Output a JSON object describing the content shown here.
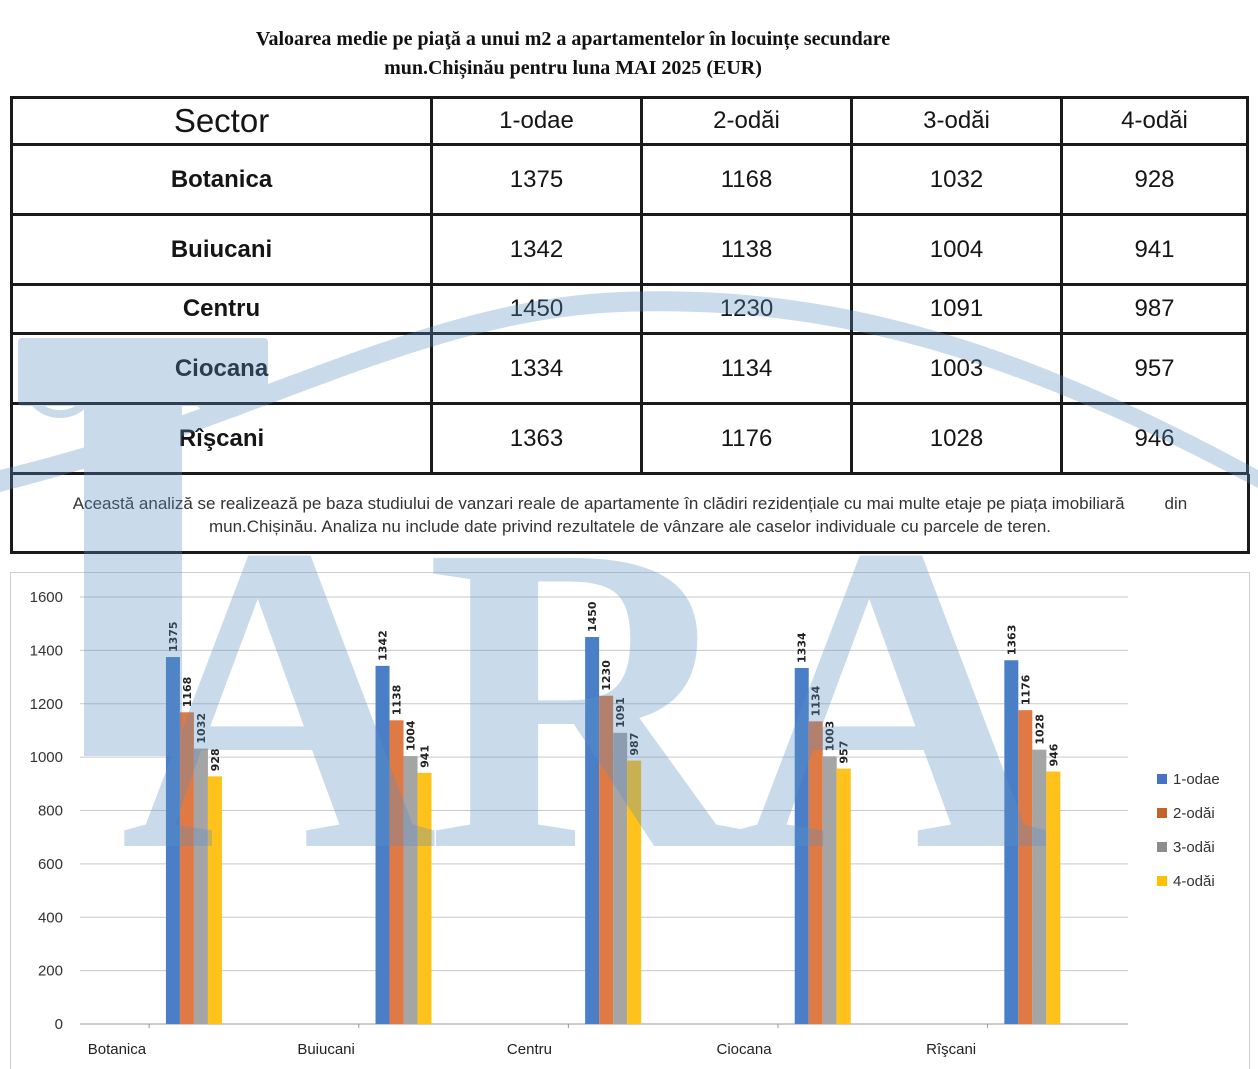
{
  "title_line1": "Valoarea medie pe piaţă a unui m2 a apartamentelor în locuințe secundare",
  "title_line2": "mun.Chișinău pentru luna  MAI 2025 (EUR)",
  "watermark_text": "ARA",
  "table": {
    "headers": [
      "Sector",
      "1-odae",
      "2-odăi",
      "3-odăi",
      "4-odăi"
    ],
    "rows": [
      {
        "sector": "Botanica",
        "values": [
          "1375",
          "1168",
          "1032",
          "928"
        ]
      },
      {
        "sector": "Buiucani",
        "values": [
          "1342",
          "1138",
          "1004",
          "941"
        ]
      },
      {
        "sector": "Centru",
        "values": [
          "1450",
          "1230",
          "1091",
          "987"
        ]
      },
      {
        "sector": "Ciocana",
        "values": [
          "1334",
          "1134",
          "1003",
          "957"
        ]
      },
      {
        "sector": "Rîşcani",
        "values": [
          "1363",
          "1176",
          "1028",
          "946"
        ]
      }
    ]
  },
  "note": {
    "line1_main": "Această analiză se realizează pe baza studiului de vanzari reale de apartamente în clădiri rezidențiale cu mai multe etaje pe piața imobiliară",
    "line1_end": "din",
    "line2": "mun.Chișinău. Analiza nu include date privind rezultatele de vânzare ale caselor individuale cu parcele de teren."
  },
  "chart_data": {
    "type": "bar",
    "categories": [
      "Botanica",
      "Buiucani",
      "Centru",
      "Ciocana",
      "Rîşcani"
    ],
    "series": [
      {
        "name": "1-odae",
        "color": "#4472c4",
        "values": [
          1375,
          1342,
          1450,
          1334,
          1363
        ]
      },
      {
        "name": "2-odăi",
        "color": "#ed7d31",
        "values": [
          1168,
          1138,
          1230,
          1134,
          1176
        ]
      },
      {
        "name": "3-odăi",
        "color": "#a5a5a5",
        "values": [
          1032,
          1004,
          1091,
          1003,
          1028
        ]
      },
      {
        "name": "4-odăi",
        "color": "#ffc000",
        "values": [
          928,
          941,
          987,
          957,
          946
        ]
      }
    ],
    "yticks": [
      0,
      200,
      400,
      600,
      800,
      1000,
      1200,
      1400,
      1600
    ],
    "ylim": [
      0,
      1600
    ],
    "grid": true,
    "legend_position": "right",
    "data_labels": true
  }
}
